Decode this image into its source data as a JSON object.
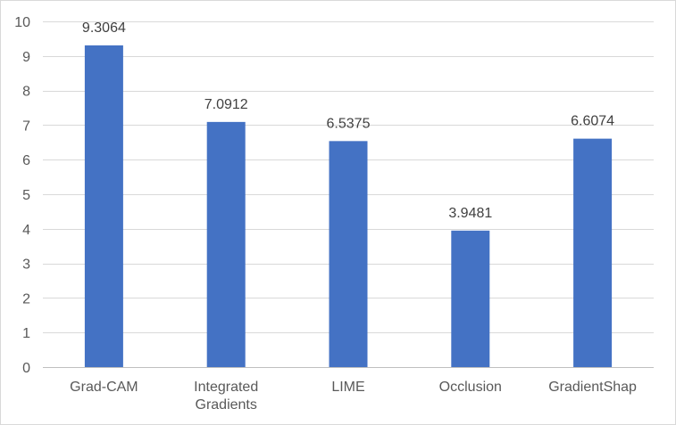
{
  "chart_data": {
    "type": "bar",
    "title": "",
    "xlabel": "",
    "ylabel": "",
    "categories": [
      [
        "Grad-CAM"
      ],
      [
        "Integrated",
        "Gradients"
      ],
      [
        "LIME"
      ],
      [
        "Occlusion"
      ],
      [
        "GradientShap"
      ]
    ],
    "values": [
      9.3064,
      7.0912,
      6.5375,
      3.9481,
      6.6074
    ],
    "value_labels": [
      "9.3064",
      "7.0912",
      "6.5375",
      "3.9481",
      "6.6074"
    ],
    "ylim": [
      0,
      10
    ],
    "yticks": [
      0,
      1,
      2,
      3,
      4,
      5,
      6,
      7,
      8,
      9,
      10
    ],
    "ytick_labels": [
      "0",
      "1",
      "2",
      "3",
      "4",
      "5",
      "6",
      "7",
      "8",
      "9",
      "10"
    ],
    "grid": true,
    "legend": "none",
    "bar_color": "#4472C4"
  }
}
